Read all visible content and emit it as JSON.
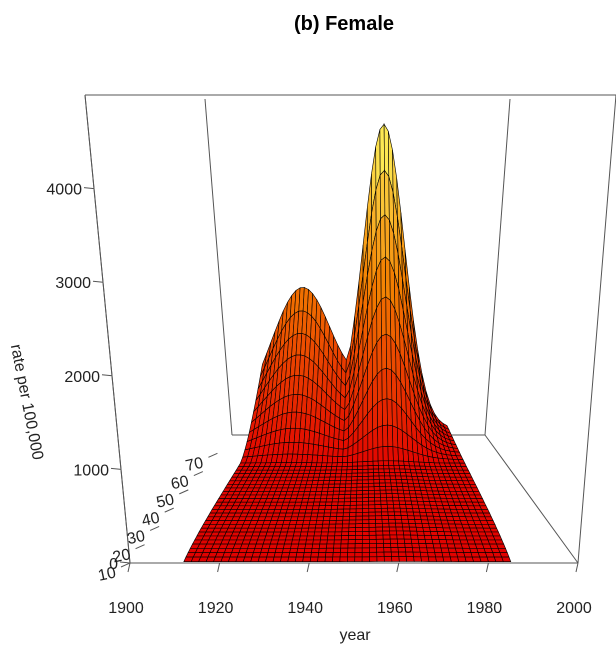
{
  "chart_data": {
    "type": "surface",
    "title": "(b) Female",
    "xlabel": "year",
    "ylabel": "",
    "zlabel": "rate per 100,000",
    "xlim": [
      1900,
      2000
    ],
    "ylim": [
      10,
      80
    ],
    "zlim": [
      0,
      4700
    ],
    "x_ticks": [
      "1900",
      "1920",
      "1940",
      "1960",
      "1980",
      "2000"
    ],
    "y_ticks": [
      "10",
      "20",
      "30",
      "40",
      "50",
      "60",
      "70"
    ],
    "z_ticks": [
      "0",
      "1000",
      "2000",
      "3000",
      "4000"
    ],
    "colors": {
      "low": "#e10000",
      "mid": "#f37f00",
      "high": "#ffff64",
      "mesh": "#000000"
    },
    "surface": {
      "description_free": true,
      "year_range": [
        1912,
        1985
      ],
      "age_range": [
        10,
        80
      ],
      "peak_year": 1960,
      "peak_rate": 4700
    }
  }
}
